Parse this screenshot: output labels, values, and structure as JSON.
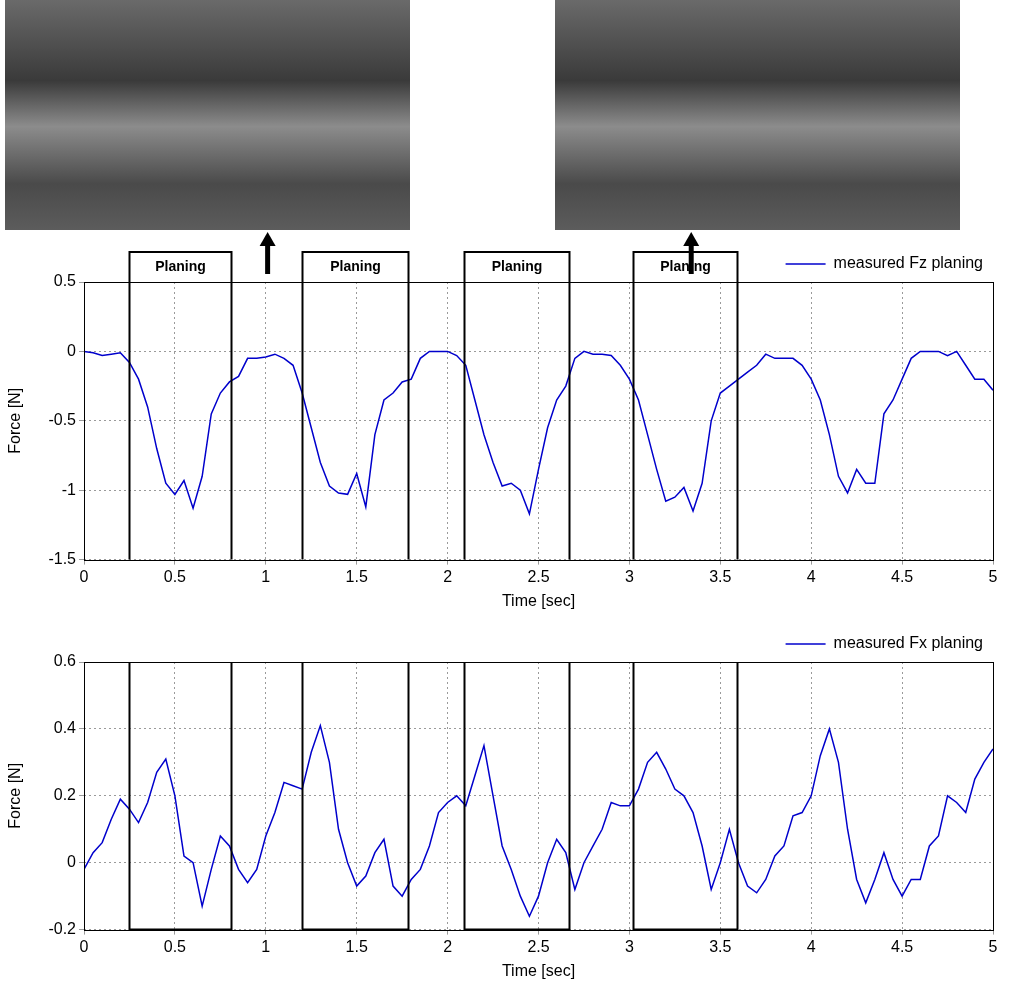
{
  "chart_data": [
    {
      "type": "line",
      "x_label": "Time [sec]",
      "y_label": "Force [N]",
      "x": [
        0,
        0.05,
        0.1,
        0.15,
        0.2,
        0.25,
        0.3,
        0.35,
        0.4,
        0.45,
        0.5,
        0.55,
        0.6,
        0.65,
        0.7,
        0.75,
        0.8,
        0.85,
        0.9,
        0.95,
        1,
        1.05,
        1.1,
        1.15,
        1.2,
        1.25,
        1.3,
        1.35,
        1.4,
        1.45,
        1.5,
        1.55,
        1.6,
        1.65,
        1.7,
        1.75,
        1.8,
        1.85,
        1.9,
        1.95,
        2,
        2.05,
        2.1,
        2.15,
        2.2,
        2.25,
        2.3,
        2.35,
        2.4,
        2.45,
        2.5,
        2.55,
        2.6,
        2.65,
        2.7,
        2.75,
        2.8,
        2.85,
        2.9,
        2.95,
        3,
        3.05,
        3.1,
        3.15,
        3.2,
        3.25,
        3.3,
        3.35,
        3.4,
        3.45,
        3.5,
        3.55,
        3.6,
        3.65,
        3.7,
        3.75,
        3.8,
        3.85,
        3.9,
        3.95,
        4,
        4.05,
        4.1,
        4.15,
        4.2,
        4.25,
        4.3,
        4.35,
        4.4,
        4.45,
        4.5,
        4.55,
        4.6,
        4.65,
        4.7,
        4.75,
        4.8,
        4.85,
        4.9,
        4.95,
        5
      ],
      "series": [
        {
          "name": "measured Fz planing",
          "color": "#0000cc",
          "values": [
            0,
            -0.01,
            -0.03,
            -0.02,
            -0.01,
            -0.08,
            -0.2,
            -0.4,
            -0.7,
            -0.95,
            -1.03,
            -0.93,
            -1.13,
            -0.9,
            -0.45,
            -0.3,
            -0.22,
            -0.18,
            -0.05,
            -0.05,
            -0.04,
            -0.02,
            -0.05,
            -0.1,
            -0.3,
            -0.55,
            -0.8,
            -0.97,
            -1.02,
            -1.03,
            -0.88,
            -1.12,
            -0.6,
            -0.35,
            -0.3,
            -0.22,
            -0.2,
            -0.05,
            0,
            0,
            0,
            -0.03,
            -0.1,
            -0.35,
            -0.6,
            -0.8,
            -0.97,
            -0.95,
            -1.0,
            -1.17,
            -0.85,
            -0.55,
            -0.35,
            -0.25,
            -0.05,
            0,
            -0.02,
            -0.02,
            -0.03,
            -0.1,
            -0.2,
            -0.35,
            -0.6,
            -0.85,
            -1.08,
            -1.05,
            -0.98,
            -1.15,
            -0.95,
            -0.5,
            -0.3,
            -0.25,
            -0.2,
            -0.15,
            -0.1,
            -0.02,
            -0.05,
            -0.05,
            -0.05,
            -0.1,
            -0.2,
            -0.35,
            -0.6,
            -0.9,
            -1.02,
            -0.85,
            -0.95,
            -0.95,
            -0.45,
            -0.35,
            -0.2,
            -0.05,
            0,
            0,
            0,
            -0.03,
            0,
            -0.1,
            -0.2,
            -0.2,
            -0.28
          ]
        }
      ],
      "xlim": [
        0,
        5
      ],
      "xticks": [
        0,
        0.5,
        1,
        1.5,
        2,
        2.5,
        3,
        3.5,
        4,
        4.5,
        5
      ],
      "ylim": [
        -1.5,
        0.5
      ],
      "yticks": [
        -1.5,
        -1,
        -0.5,
        0,
        0.5
      ],
      "grid": true,
      "legend": "top"
    },
    {
      "type": "line",
      "x_label": "Time [sec]",
      "y_label": "Force [N]",
      "x": [
        0,
        0.05,
        0.1,
        0.15,
        0.2,
        0.25,
        0.3,
        0.35,
        0.4,
        0.45,
        0.5,
        0.55,
        0.6,
        0.65,
        0.7,
        0.75,
        0.8,
        0.85,
        0.9,
        0.95,
        1,
        1.05,
        1.1,
        1.15,
        1.2,
        1.25,
        1.3,
        1.35,
        1.4,
        1.45,
        1.5,
        1.55,
        1.6,
        1.65,
        1.7,
        1.75,
        1.8,
        1.85,
        1.9,
        1.95,
        2,
        2.05,
        2.1,
        2.15,
        2.2,
        2.25,
        2.3,
        2.35,
        2.4,
        2.45,
        2.5,
        2.55,
        2.6,
        2.65,
        2.7,
        2.75,
        2.8,
        2.85,
        2.9,
        2.95,
        3,
        3.05,
        3.1,
        3.15,
        3.2,
        3.25,
        3.3,
        3.35,
        3.4,
        3.45,
        3.5,
        3.55,
        3.6,
        3.65,
        3.7,
        3.75,
        3.8,
        3.85,
        3.9,
        3.95,
        4,
        4.05,
        4.1,
        4.15,
        4.2,
        4.25,
        4.3,
        4.35,
        4.4,
        4.45,
        4.5,
        4.55,
        4.6,
        4.65,
        4.7,
        4.75,
        4.8,
        4.85,
        4.9,
        4.95,
        5
      ],
      "series": [
        {
          "name": "measured Fx planing",
          "color": "#0000cc",
          "values": [
            -0.02,
            0.03,
            0.06,
            0.13,
            0.19,
            0.16,
            0.12,
            0.18,
            0.27,
            0.31,
            0.2,
            0.02,
            0.0,
            -0.13,
            -0.02,
            0.08,
            0.05,
            -0.02,
            -0.06,
            -0.02,
            0.08,
            0.15,
            0.24,
            0.23,
            0.22,
            0.33,
            0.41,
            0.3,
            0.1,
            0.0,
            -0.07,
            -0.04,
            0.03,
            0.07,
            -0.07,
            -0.1,
            -0.05,
            -0.02,
            0.05,
            0.15,
            0.18,
            0.2,
            0.17,
            0.26,
            0.35,
            0.2,
            0.05,
            -0.02,
            -0.1,
            -0.16,
            -0.1,
            0.0,
            0.07,
            0.03,
            -0.08,
            0.0,
            0.05,
            0.1,
            0.18,
            0.17,
            0.17,
            0.22,
            0.3,
            0.33,
            0.28,
            0.22,
            0.2,
            0.15,
            0.05,
            -0.08,
            0.0,
            0.1,
            0.0,
            -0.07,
            -0.09,
            -0.05,
            0.02,
            0.05,
            0.14,
            0.15,
            0.2,
            0.32,
            0.4,
            0.3,
            0.1,
            -0.05,
            -0.12,
            -0.05,
            0.03,
            -0.05,
            -0.1,
            -0.05,
            -0.05,
            0.05,
            0.08,
            0.2,
            0.18,
            0.15,
            0.25,
            0.3,
            0.34
          ]
        }
      ],
      "xlim": [
        0,
        5
      ],
      "xticks": [
        0,
        0.5,
        1,
        1.5,
        2,
        2.5,
        3,
        3.5,
        4,
        4.5,
        5
      ],
      "ylim": [
        -0.2,
        0.6
      ],
      "yticks": [
        -0.2,
        0,
        0.2,
        0.4,
        0.6
      ],
      "grid": true,
      "legend": "top"
    }
  ],
  "annotations": [
    {
      "text": "Planing",
      "x0": 0.25,
      "x1": 0.81
    },
    {
      "text": "Planing",
      "x0": 1.2,
      "x1": 1.78
    },
    {
      "text": "Planing",
      "x0": 2.09,
      "x1": 2.67
    },
    {
      "text": "Planing",
      "x0": 3.02,
      "x1": 3.59
    }
  ],
  "photos": [
    {
      "time": 1.01
    },
    {
      "time": 3.34
    }
  ]
}
